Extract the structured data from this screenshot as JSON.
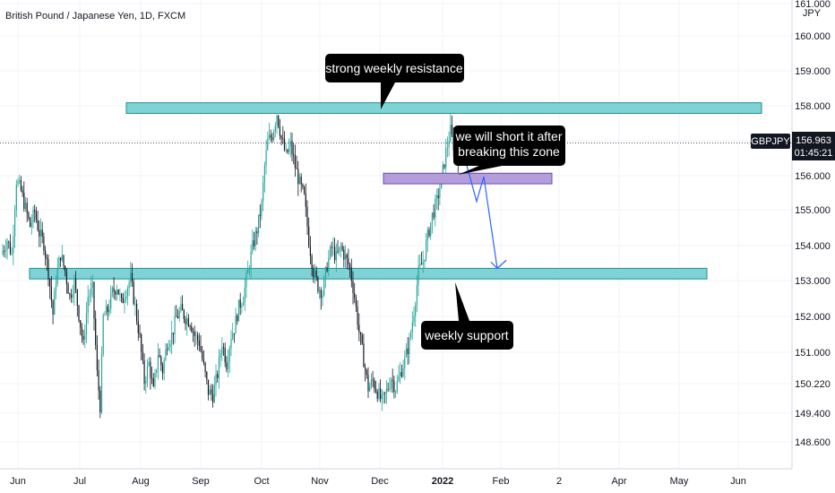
{
  "header": {
    "title": "British Pound / Japanese Yen, 1D, FXCM"
  },
  "price_tag": {
    "symbol": "GBPJPY",
    "price": "156.963",
    "countdown": "01:45:21"
  },
  "colors": {
    "up": "#26a69a",
    "down": "#131722",
    "zone": "#7fd3d6",
    "zone_border": "#1f8c8f",
    "entry_zone": "#b39ddb",
    "entry_border": "#6a4caf",
    "arrow": "#2962ff",
    "callout": "#000000"
  },
  "chart_data": {
    "type": "candlestick",
    "title": "British Pound / Japanese Yen, 1D, FXCM",
    "y_unit": "JPY",
    "ylim": [
      148.0,
      161.0
    ],
    "y_ticks": [
      "161.000",
      "160.000",
      "159.000",
      "158.000",
      "157.000",
      "156.000",
      "155.000",
      "154.000",
      "153.000",
      "152.000",
      "151.000",
      "150.220",
      "149.400",
      "148.600"
    ],
    "x_ticks": [
      "Jun",
      "Jul",
      "Aug",
      "Sep",
      "Oct",
      "Nov",
      "Dec",
      "2022",
      "Feb",
      "2",
      "Apr",
      "May",
      "Jun"
    ],
    "grid": true,
    "last_price": 156.963,
    "series": [
      {
        "type": "candlestick",
        "path": [
          [
            0,
            153.9
          ],
          [
            3,
            154.2
          ],
          [
            6,
            153.8
          ],
          [
            9,
            155.9
          ],
          [
            12,
            155.6
          ],
          [
            15,
            155.1
          ],
          [
            18,
            154.6
          ],
          [
            21,
            155.0
          ],
          [
            24,
            154.4
          ],
          [
            27,
            154.1
          ],
          [
            30,
            153.3
          ],
          [
            33,
            152.1
          ],
          [
            35,
            153.1
          ],
          [
            38,
            153.8
          ],
          [
            41,
            153.3
          ],
          [
            44,
            152.6
          ],
          [
            47,
            153.0
          ],
          [
            50,
            152.1
          ],
          [
            53,
            151.2
          ],
          [
            56,
            152.6
          ],
          [
            59,
            152.8
          ],
          [
            62,
            150.4
          ],
          [
            64,
            149.5
          ],
          [
            66,
            152.0
          ],
          [
            69,
            152.2
          ],
          [
            72,
            152.7
          ],
          [
            75,
            152.9
          ],
          [
            78,
            152.4
          ],
          [
            81,
            152.8
          ],
          [
            84,
            153.1
          ],
          [
            87,
            152.3
          ],
          [
            90,
            151.4
          ],
          [
            93,
            150.2
          ],
          [
            96,
            150.7
          ],
          [
            99,
            149.9
          ],
          [
            102,
            151.0
          ],
          [
            105,
            150.5
          ],
          [
            108,
            151.3
          ],
          [
            111,
            151.5
          ],
          [
            114,
            152.0
          ],
          [
            117,
            152.2
          ],
          [
            120,
            152.0
          ],
          [
            123,
            151.9
          ],
          [
            126,
            151.5
          ],
          [
            129,
            151.3
          ],
          [
            132,
            150.6
          ],
          [
            135,
            149.9
          ],
          [
            138,
            149.8
          ],
          [
            141,
            150.4
          ],
          [
            144,
            151.3
          ],
          [
            147,
            150.7
          ],
          [
            150,
            151.5
          ],
          [
            152,
            151.7
          ],
          [
            155,
            152.3
          ],
          [
            158,
            152.6
          ],
          [
            161,
            153.3
          ],
          [
            164,
            154.0
          ],
          [
            167,
            154.5
          ],
          [
            170,
            155.2
          ],
          [
            172,
            156.3
          ],
          [
            174,
            157.0
          ],
          [
            177,
            157.2
          ],
          [
            180,
            157.8
          ],
          [
            183,
            157.1
          ],
          [
            186,
            156.6
          ],
          [
            189,
            156.9
          ],
          [
            192,
            156.3
          ],
          [
            195,
            155.8
          ],
          [
            198,
            155.4
          ],
          [
            201,
            154.2
          ],
          [
            204,
            153.3
          ],
          [
            207,
            152.9
          ],
          [
            210,
            152.7
          ],
          [
            213,
            153.5
          ],
          [
            216,
            154.0
          ],
          [
            219,
            153.7
          ],
          [
            222,
            154.0
          ],
          [
            225,
            153.7
          ],
          [
            228,
            153.4
          ],
          [
            231,
            152.6
          ],
          [
            234,
            151.6
          ],
          [
            237,
            150.8
          ],
          [
            240,
            150.0
          ],
          [
            243,
            150.2
          ],
          [
            246,
            149.9
          ],
          [
            249,
            149.6
          ],
          [
            252,
            149.9
          ],
          [
            255,
            150.3
          ],
          [
            258,
            150.0
          ],
          [
            261,
            150.4
          ],
          [
            264,
            150.8
          ],
          [
            267,
            151.3
          ],
          [
            270,
            152.2
          ],
          [
            273,
            153.3
          ],
          [
            276,
            153.6
          ],
          [
            279,
            154.3
          ],
          [
            282,
            154.9
          ],
          [
            285,
            155.3
          ],
          [
            288,
            155.9
          ],
          [
            291,
            156.7
          ],
          [
            294,
            157.3
          ],
          [
            296,
            156.9
          ],
          [
            299,
            156.6
          ],
          [
            302,
            157.0
          ]
        ]
      }
    ],
    "annotations": [
      {
        "label": "strong weekly resistance",
        "type": "resistance_zone",
        "range": [
          157.8,
          158.1
        ]
      },
      {
        "label": "weekly support",
        "type": "support_zone",
        "range": [
          153.1,
          153.4
        ]
      },
      {
        "label": "we will short it after breaking this zone",
        "type": "entry_zone",
        "range": [
          155.8,
          156.1
        ]
      }
    ],
    "projection": {
      "type": "arrow",
      "path": [
        156.963,
        155.3,
        156.0,
        153.4
      ]
    }
  }
}
